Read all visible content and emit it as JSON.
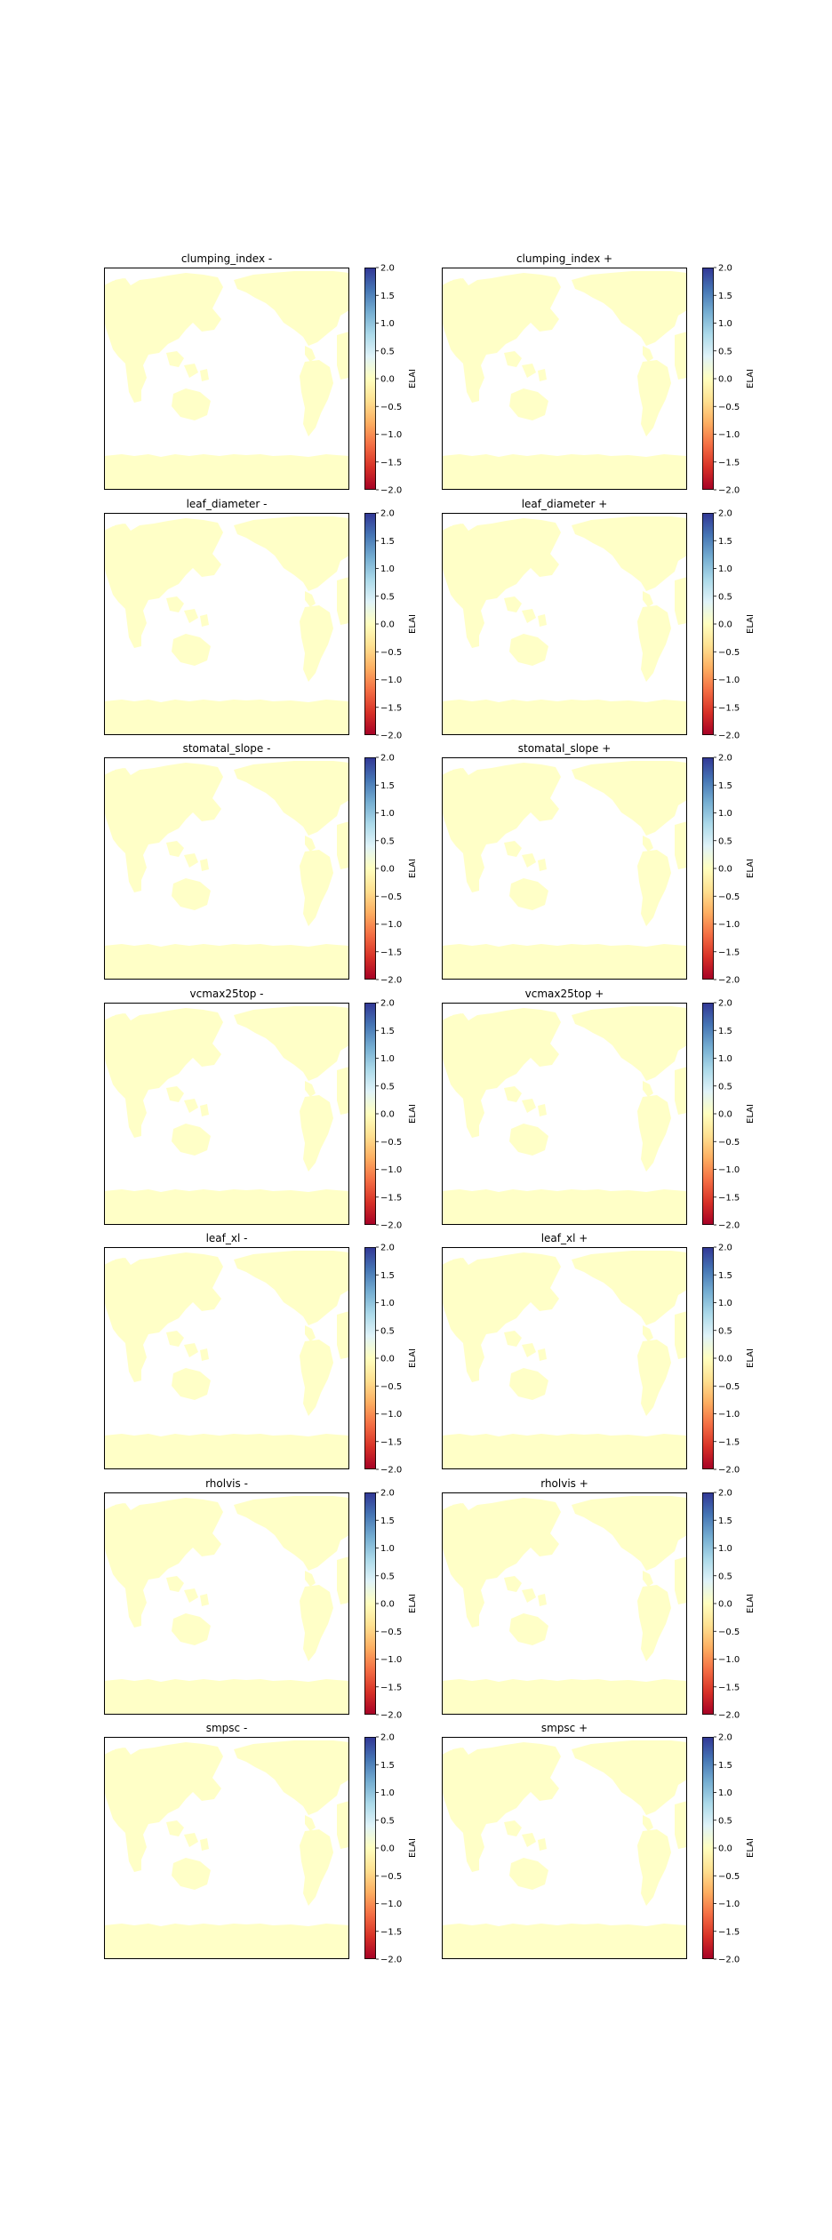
{
  "figure": {
    "background": "#ffffff"
  },
  "chart_data": {
    "type": "heatmap",
    "map_fill_color": "#ffffc7",
    "colorbar": {
      "label": "ELAI",
      "range": [
        -2.0,
        2.0
      ],
      "ticks": [
        "2.0",
        "1.5",
        "1.0",
        "0.5",
        "0.0",
        "−0.5",
        "−1.0",
        "−1.5",
        "−2.0"
      ],
      "colormap": [
        "#a50026",
        "#d73027",
        "#f46d43",
        "#fdae61",
        "#fee090",
        "#ffffbf",
        "#e0f3f8",
        "#abd9e9",
        "#74add1",
        "#4575b4",
        "#313695"
      ]
    },
    "panels": [
      {
        "title": "clumping_index -",
        "value": 0.0
      },
      {
        "title": "clumping_index +",
        "value": 0.0
      },
      {
        "title": "leaf_diameter -",
        "value": 0.0
      },
      {
        "title": "leaf_diameter +",
        "value": 0.0
      },
      {
        "title": "stomatal_slope -",
        "value": 0.0
      },
      {
        "title": "stomatal_slope +",
        "value": 0.0
      },
      {
        "title": "vcmax25top -",
        "value": 0.0
      },
      {
        "title": "vcmax25top +",
        "value": 0.0
      },
      {
        "title": "leaf_xl -",
        "value": 0.0
      },
      {
        "title": "leaf_xl +",
        "value": 0.0
      },
      {
        "title": "rholvis -",
        "value": 0.0
      },
      {
        "title": "rholvis +",
        "value": 0.0
      },
      {
        "title": "smpsc -",
        "value": 0.0
      },
      {
        "title": "smpsc +",
        "value": 0.0
      }
    ]
  }
}
